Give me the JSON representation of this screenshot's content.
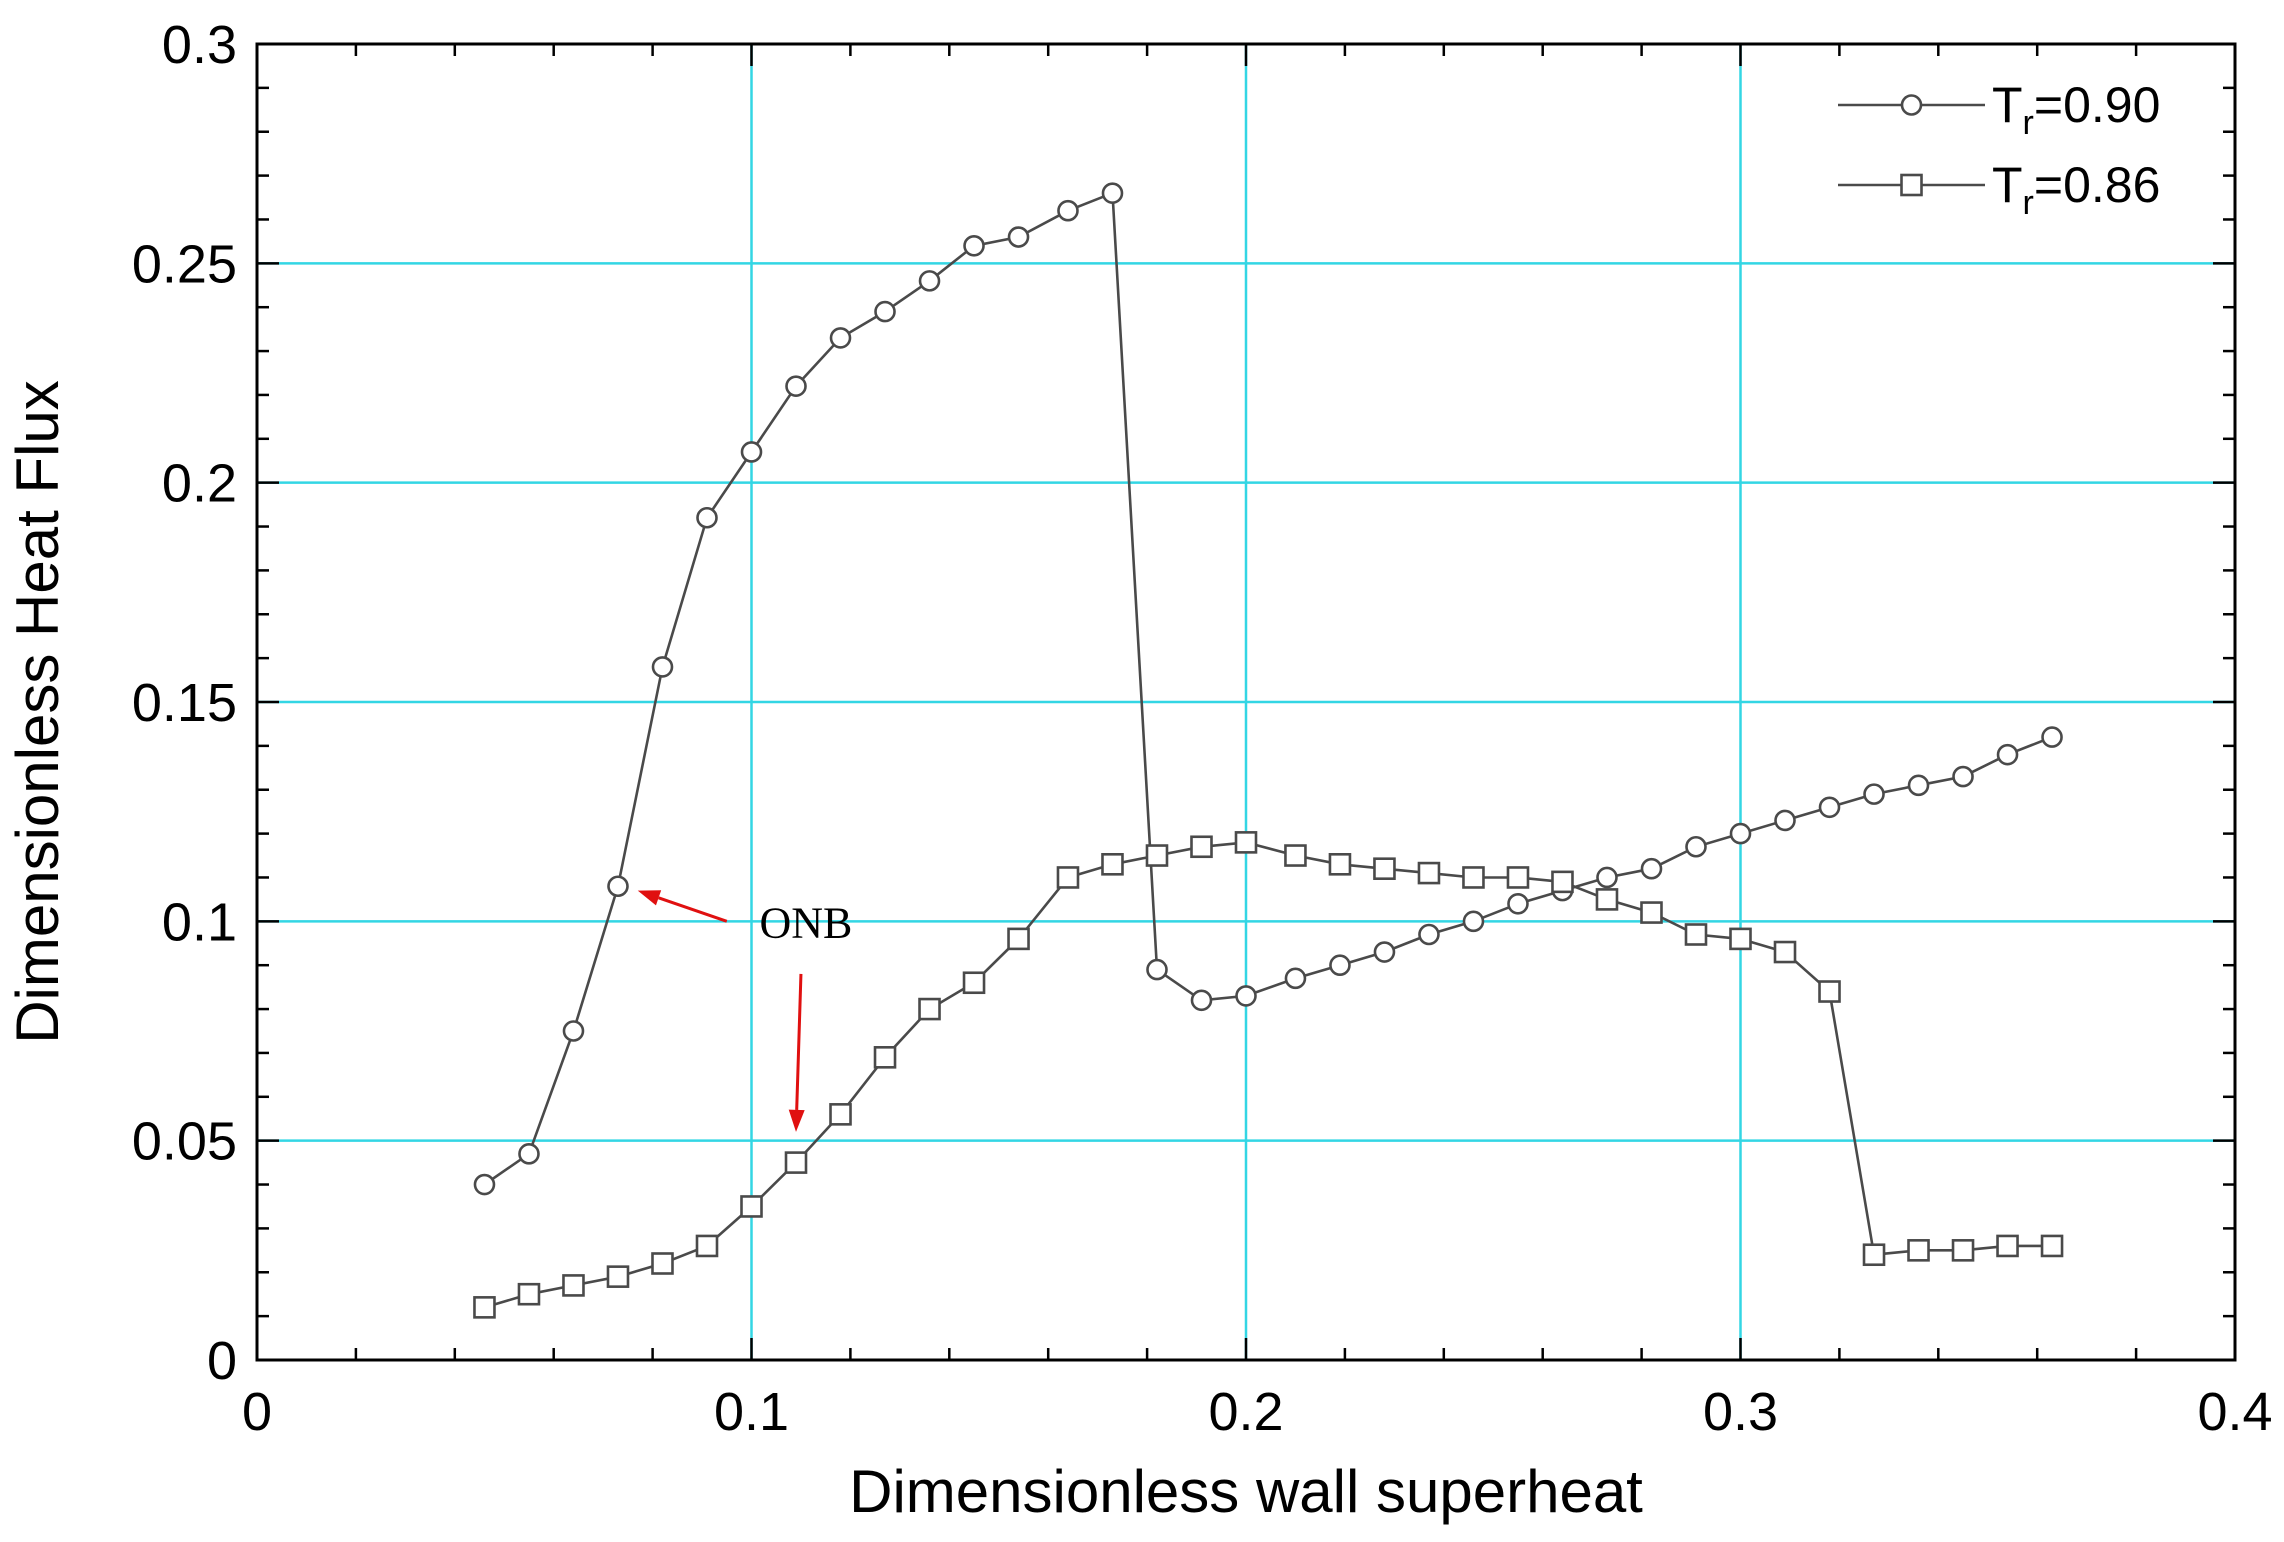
{
  "chart_data": {
    "type": "line",
    "xlabel": "Dimensionless wall superheat",
    "ylabel": "Dimensionless Heat Flux",
    "xlim": [
      0,
      0.4
    ],
    "ylim": [
      0,
      0.3
    ],
    "x_ticks": [
      0,
      0.1,
      0.2,
      0.3,
      0.4
    ],
    "y_ticks": [
      0,
      0.05,
      0.1,
      0.15,
      0.2,
      0.25,
      0.3
    ],
    "x_tick_labels": [
      "0",
      "0.1",
      "0.2",
      "0.3",
      "0.4"
    ],
    "y_tick_labels": [
      "0",
      "0.05",
      "0.1",
      "0.15",
      "0.2",
      "0.25",
      "0.3"
    ],
    "grid": true,
    "legend_position": "top-right",
    "series": [
      {
        "name_main": "T",
        "name_sub": "r",
        "name_rest": "=0.90",
        "marker": "circle",
        "points": [
          [
            0.046,
            0.04
          ],
          [
            0.055,
            0.047
          ],
          [
            0.064,
            0.075
          ],
          [
            0.073,
            0.108
          ],
          [
            0.082,
            0.158
          ],
          [
            0.091,
            0.192
          ],
          [
            0.1,
            0.207
          ],
          [
            0.109,
            0.222
          ],
          [
            0.118,
            0.233
          ],
          [
            0.127,
            0.239
          ],
          [
            0.136,
            0.246
          ],
          [
            0.145,
            0.254
          ],
          [
            0.154,
            0.256
          ],
          [
            0.164,
            0.262
          ],
          [
            0.173,
            0.266
          ],
          [
            0.182,
            0.089
          ],
          [
            0.191,
            0.082
          ],
          [
            0.2,
            0.083
          ],
          [
            0.21,
            0.087
          ],
          [
            0.219,
            0.09
          ],
          [
            0.228,
            0.093
          ],
          [
            0.237,
            0.097
          ],
          [
            0.246,
            0.1
          ],
          [
            0.255,
            0.104
          ],
          [
            0.264,
            0.107
          ],
          [
            0.273,
            0.11
          ],
          [
            0.282,
            0.112
          ],
          [
            0.291,
            0.117
          ],
          [
            0.3,
            0.12
          ],
          [
            0.309,
            0.123
          ],
          [
            0.318,
            0.126
          ],
          [
            0.327,
            0.129
          ],
          [
            0.336,
            0.131
          ],
          [
            0.345,
            0.133
          ],
          [
            0.354,
            0.138
          ],
          [
            0.363,
            0.142
          ]
        ]
      },
      {
        "name_main": "T",
        "name_sub": "r",
        "name_rest": "=0.86",
        "marker": "square",
        "points": [
          [
            0.046,
            0.012
          ],
          [
            0.055,
            0.015
          ],
          [
            0.064,
            0.017
          ],
          [
            0.073,
            0.019
          ],
          [
            0.082,
            0.022
          ],
          [
            0.091,
            0.026
          ],
          [
            0.1,
            0.035
          ],
          [
            0.109,
            0.045
          ],
          [
            0.118,
            0.056
          ],
          [
            0.127,
            0.069
          ],
          [
            0.136,
            0.08
          ],
          [
            0.145,
            0.086
          ],
          [
            0.154,
            0.096
          ],
          [
            0.164,
            0.11
          ],
          [
            0.173,
            0.113
          ],
          [
            0.182,
            0.115
          ],
          [
            0.191,
            0.117
          ],
          [
            0.2,
            0.118
          ],
          [
            0.21,
            0.115
          ],
          [
            0.219,
            0.113
          ],
          [
            0.228,
            0.112
          ],
          [
            0.237,
            0.111
          ],
          [
            0.246,
            0.11
          ],
          [
            0.255,
            0.11
          ],
          [
            0.264,
            0.109
          ],
          [
            0.273,
            0.105
          ],
          [
            0.282,
            0.102
          ],
          [
            0.291,
            0.097
          ],
          [
            0.3,
            0.096
          ],
          [
            0.309,
            0.093
          ],
          [
            0.318,
            0.084
          ],
          [
            0.327,
            0.024
          ],
          [
            0.336,
            0.025
          ],
          [
            0.345,
            0.025
          ],
          [
            0.354,
            0.026
          ],
          [
            0.363,
            0.026
          ]
        ]
      }
    ],
    "annotations": [
      {
        "text": "ONB",
        "text_at": [
          0.111,
          0.1
        ],
        "arrows": [
          {
            "from": [
              0.095,
              0.1
            ],
            "to": [
              0.077,
              0.107
            ]
          },
          {
            "from": [
              0.11,
              0.088
            ],
            "to": [
              0.109,
              0.052
            ]
          }
        ]
      }
    ]
  }
}
